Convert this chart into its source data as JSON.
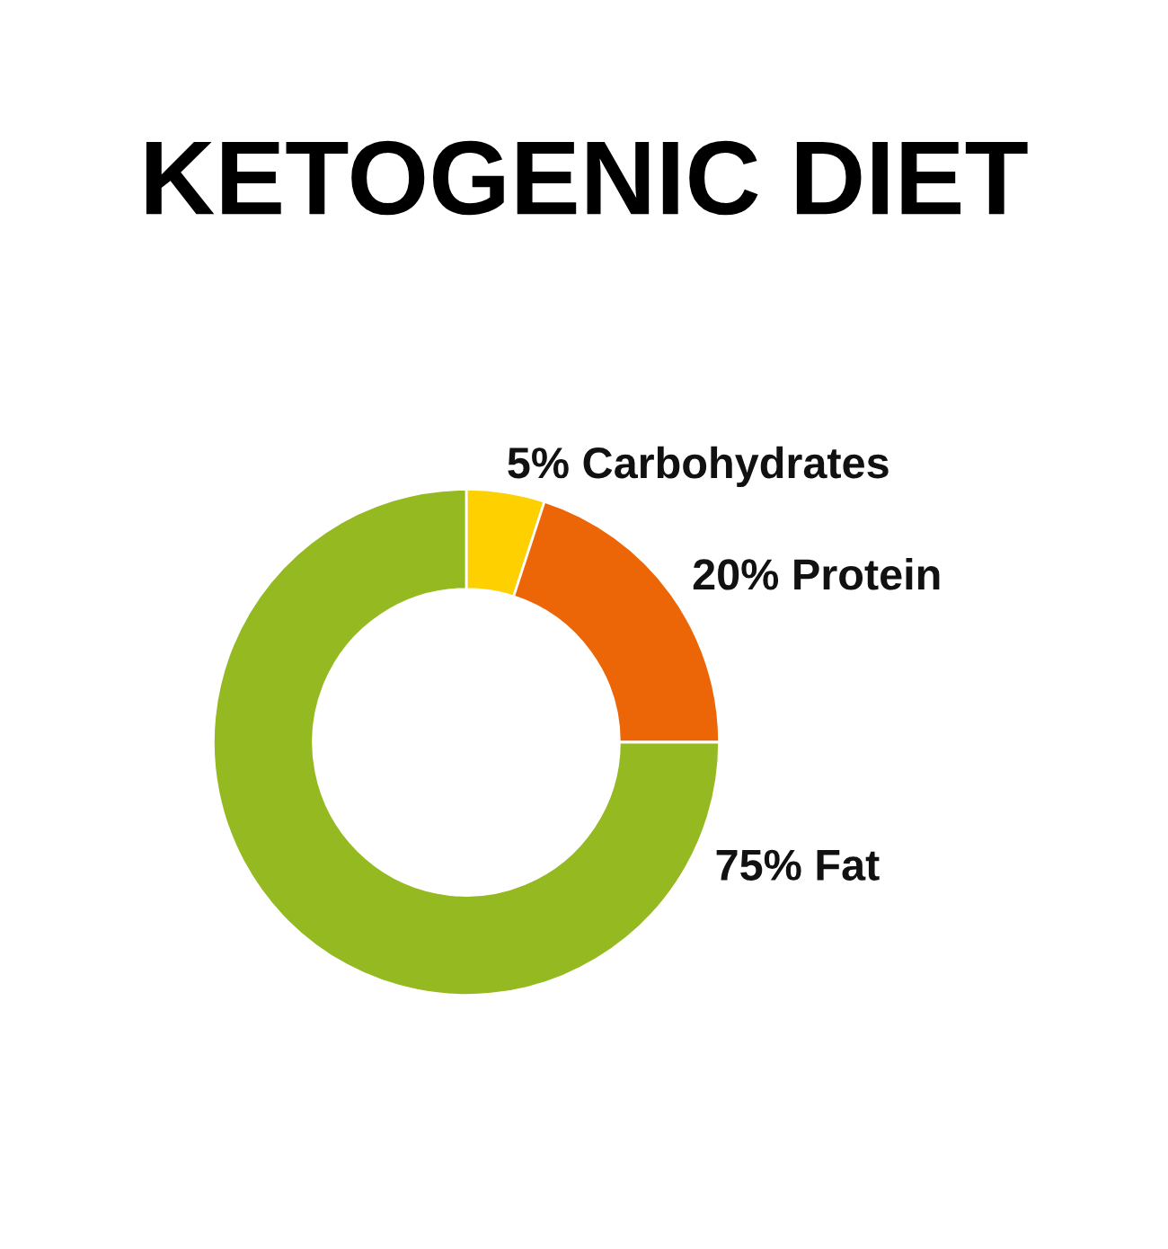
{
  "chart_data": {
    "type": "donut",
    "title": "KETOGENIC DIET",
    "categories": [
      "Carbohydrates",
      "Protein",
      "Fat"
    ],
    "values": [
      5,
      20,
      75
    ],
    "value_labels": [
      "5%",
      "20%",
      "75%"
    ],
    "colors": [
      "#fed000",
      "#ec6608",
      "#95b921"
    ]
  }
}
